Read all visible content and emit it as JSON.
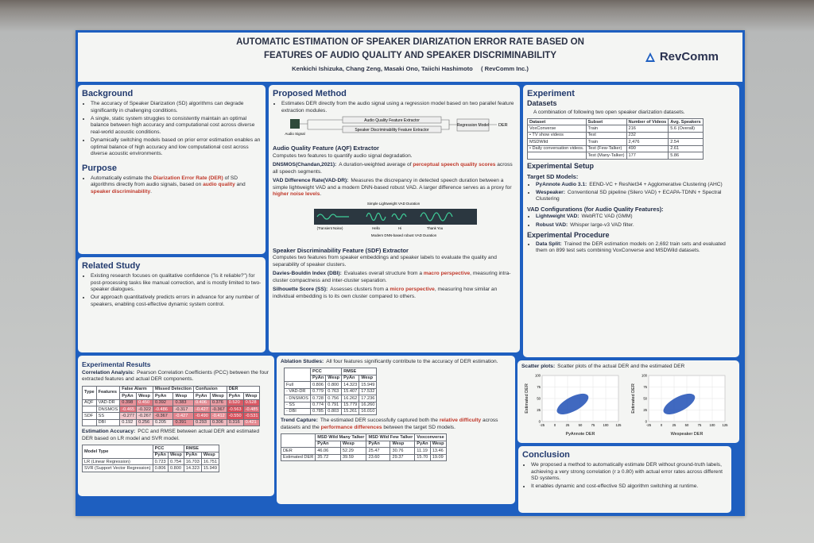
{
  "header": {
    "title_lines": [
      "AUTOMATIC ESTIMATION OF SPEAKER DIARIZATION ERROR RATE BASED ON",
      "FEATURES OF AUDIO QUALITY AND SPEAKER DISCRIMINABILITY"
    ],
    "authors": "Kenkichi Ishizuka, Chang Zeng, Masaki Ono, Taiichi Hashimoto",
    "affiliation": "( RevComm Inc.)",
    "logo": "RevComm"
  },
  "background": {
    "heading": "Background",
    "bullets": [
      "The accuracy of Speaker Diarization (SD) algorithms can degrade significantly in challenging conditions.",
      "A single, static system struggles to consistently maintain an optimal balance between high accuracy and computational cost across diverse real-world acoustic conditions.",
      "Dynamically switching models based on prior error estimation enables an optimal balance of high accuracy and low computational cost across diverse acoustic environments."
    ]
  },
  "purpose": {
    "heading": "Purpose",
    "bullets": [
      [
        "Automatically estimate the ",
        "Diarization Error Rate (DER)",
        " of SD algorithms directly from audio signals, based on ",
        "audio quality",
        " and ",
        "speaker discriminability",
        "."
      ]
    ]
  },
  "related": {
    "heading": "Related Study",
    "bullets": [
      "Existing research focuses on qualitative confidence (\"is it reliable?\") for post-processing tasks like manual correction, and is mostly limited to two-speaker dialogues.",
      "Our approach quantitatively predicts errors in advance for any number of speakers, enabling cost-effective dynamic system control."
    ]
  },
  "method": {
    "heading": "Proposed Method",
    "bullets": [
      "Estimates DER directly from the audio signal using a regression model based on two parallel feature extraction modules."
    ],
    "diagram": {
      "input": "Audio Signal",
      "extractors": [
        "Audio Quality Feature Extractor",
        "Speaker Discriminability Feature Extractor"
      ],
      "model": "Regression Model",
      "output": "DER"
    },
    "aqf_heading": "Audio Quality Feature (AQF) Extractor",
    "aqf_text": "Computes two features to quantify audio signal degradation.",
    "dnsmos": {
      "term": "DNSMOS(Chandan,2021):",
      "text": [
        "A duration-weighted average of ",
        "perceptual speech quality scores",
        " across all speech segments."
      ]
    },
    "vad": {
      "term": "VAD Difference Rate(VAD-DR):",
      "text": [
        "Measures the discrepancy in detected speech duration between a simple lightweight VAD and a modern DNN-based robust VAD. A larger difference serves as a proxy for ",
        "higher noise levels",
        "."
      ]
    },
    "waveform": {
      "top": "Simple Lightweight VAD Duration",
      "segments": [
        "(Transient Noise)",
        "Hello",
        "Hi",
        "Thank You"
      ],
      "bottom": "Modern DNN-based robust VAD Duration"
    },
    "sdf_heading": "Speaker Discriminability Feature (SDF) Extractor",
    "sdf_text": "Computes two features from speaker embeddings and speaker labels to evaluate the quality and separability of speaker clusters.",
    "dbi": {
      "term": "Davies-Bouldin Index (DBI):",
      "text": [
        "Evaluates overall structure from a ",
        "macro perspective",
        ", measuring intra-cluster compactness and inter-cluster separation."
      ]
    },
    "ss": {
      "term": "Silhouette Score (SS):",
      "text": [
        "Assesses clusters from a ",
        "micro perspective",
        ", measuring how similar an individual embedding is to its own cluster compared to others."
      ]
    }
  },
  "experiment": {
    "heading": "Experiment",
    "datasets_heading": "Datasets",
    "datasets_text": "A combination of following two open speaker diarization datasets.",
    "datasets_table": {
      "header": [
        "Dataset",
        "Subset",
        "Number of Videos",
        "Avg. Speakers"
      ],
      "rows": [
        [
          "VoxConverse",
          "Train",
          "216",
          "5.6 (Overall)"
        ],
        [
          "• TV show videos",
          "Test",
          "232",
          null
        ],
        [
          "MSDWild",
          "Train",
          "2,476",
          "2.54"
        ],
        [
          "• Daily conversation videos.",
          "Test (Few-Talker)",
          "490",
          "2.61"
        ],
        [
          null,
          "Test (Many-Talker)",
          "177",
          "5.86"
        ]
      ]
    },
    "setup_heading": "Experimental Setup",
    "models_heading": "Target SD Models:",
    "models": [
      {
        "term": "PyAnnote Audio 3.1:",
        "text": "EEND-VC + ResNet34 + Agglomerative Clustering (AHC)"
      },
      {
        "term": "Wespeaker:",
        "text": "Conventional SD pipeline (Silero VAD) + ECAPA-TDNN + Spectral Clustering"
      }
    ],
    "vad_heading": "VAD Configurations (for Audio Quality Features):",
    "vads": [
      {
        "term": "Lightweight VAD:",
        "text": "WebRTC VAD (GMM)"
      },
      {
        "term": "Robust VAD:",
        "text": "Whisper large-v3 VAD filter."
      }
    ],
    "procedure_heading": "Experimental Procedure",
    "procedure": [
      {
        "term": "Data Split:",
        "text": "Trained the DER estimation models on 2,692 train sets and evaluated them on 899 test sets combining VoxConverse and MSDWild datasets."
      }
    ]
  },
  "results": {
    "heading": "Experimental Results",
    "correlation": {
      "term": "Correlation Analysis:",
      "text": "Pearson Correlation Coefficients (PCC) between the four extracted features and actual DER components."
    },
    "correlation_table": {
      "heatmap": true,
      "header": [
        "Type",
        "Features",
        "False Alarm",
        "Missed Detection",
        "Confusion",
        "DER"
      ],
      "sub": [
        "PyAn",
        "Wesp",
        "PyAn",
        "Wesp",
        "PyAn",
        "Wesp",
        "PyAn",
        "Wesp"
      ],
      "rows": [
        [
          "AQF",
          "VAD-DR",
          "0.398",
          "0.450",
          "0.392",
          "0.383",
          "0.406",
          "0.376",
          "0.520",
          "0.528"
        ],
        [
          null,
          "DNSMOS",
          "-0.465",
          "-0.322",
          "-0.486",
          "-0.317",
          "-0.427",
          "-0.367",
          "-0.563",
          "-0.485"
        ],
        [
          "SDF",
          "SS",
          "-0.277",
          "-0.267",
          "-0.367",
          "-0.427",
          "-0.490",
          "-0.412",
          "-0.550",
          "-0.531"
        ],
        [
          null,
          "DBI",
          "0.192",
          "0.256",
          "0.205",
          "0.391",
          "0.293",
          "0.306",
          "0.316",
          "0.421"
        ]
      ]
    },
    "accuracy": {
      "term": "Estimation Accuracy:",
      "text": "PCC and RMSE between actual DER and estimated DER based on LR model and SVR model."
    },
    "accuracy_table": {
      "header": [
        "Model Type",
        "PCC",
        "RMSE"
      ],
      "sub": [
        "PyAn",
        "Wesp",
        "PyAn",
        "Wesp"
      ],
      "rows": [
        [
          "LR (Linear Regression)",
          "0.723",
          "0.754",
          "16.703",
          "16.751"
        ],
        [
          "SVR (Support Vector Regression)",
          "0.806",
          "0.800",
          "14.323",
          "15.949"
        ]
      ]
    },
    "ablation": {
      "term": "Ablation Studies:",
      "text": "All four features significantly contribute to the accuracy of DER estimation."
    },
    "ablation_table": {
      "header": [
        null,
        "PCC",
        "RMSE"
      ],
      "sub": [
        "PyAn",
        "Wesp",
        "PyAn",
        "Wesp"
      ],
      "rows": [
        [
          "Full",
          "0.806",
          "0.800",
          "14.323",
          "15.949"
        ],
        [
          "- VAD-DR",
          "0.779",
          "0.763",
          "15.407",
          "17.532"
        ],
        [
          "- DNSMOS",
          "0.728",
          "0.756",
          "16.262",
          "17.236"
        ],
        [
          "- SS",
          "0.774",
          "0.791",
          "15.779",
          "16.260"
        ],
        [
          "- DBI",
          "0.785",
          "0.803",
          "15.261",
          "16.010"
        ]
      ]
    },
    "trend": {
      "term": "Trend Capture:",
      "text": [
        "The estimated DER successfully captured both the ",
        "relative difficulty",
        " across datasets and the ",
        "performance differences",
        " between the target SD models."
      ]
    },
    "trend_table": {
      "header": [
        null,
        "MSD Wild Many Talker",
        "MSD Wild Few Talker",
        "Voxconverse"
      ],
      "sub": [
        "PyAn",
        "Wesp",
        "PyAn",
        "Wesp",
        "PyAn",
        "Wesp"
      ],
      "rows": [
        [
          "DER",
          "46.06",
          "52.29",
          "25.47",
          "30.76",
          "11.19",
          "13.46"
        ],
        [
          "Estimated DER",
          "35.72",
          "39.59",
          "23.60",
          "29.37",
          "15.70",
          "19.09"
        ]
      ]
    },
    "scatter": {
      "term": "Scatter plots:",
      "text": "Scatter plots of the actual DER and the estimated DER"
    },
    "plots": [
      {
        "xlabel": "PyAnnote DER",
        "ylabel": "Estimated DER"
      },
      {
        "xlabel": "Wespeaker DER",
        "ylabel": "Estimated DER"
      }
    ],
    "xlim": [
      -25,
      125
    ],
    "xticks": [
      -25,
      0,
      25,
      50,
      75,
      100,
      125
    ],
    "ylim": [
      0,
      100
    ],
    "yticks": [
      0,
      25,
      50,
      75,
      100
    ]
  },
  "conclusion": {
    "heading": "Conclusion",
    "bullets": [
      "We proposed a method to automatically estimate DER without ground-truth labels, achieving a very strong correlation (r ≥ 0.80) with actual error rates across different SD systems.",
      "It enables dynamic and cost-effective SD algorithm switching at runtime."
    ]
  }
}
